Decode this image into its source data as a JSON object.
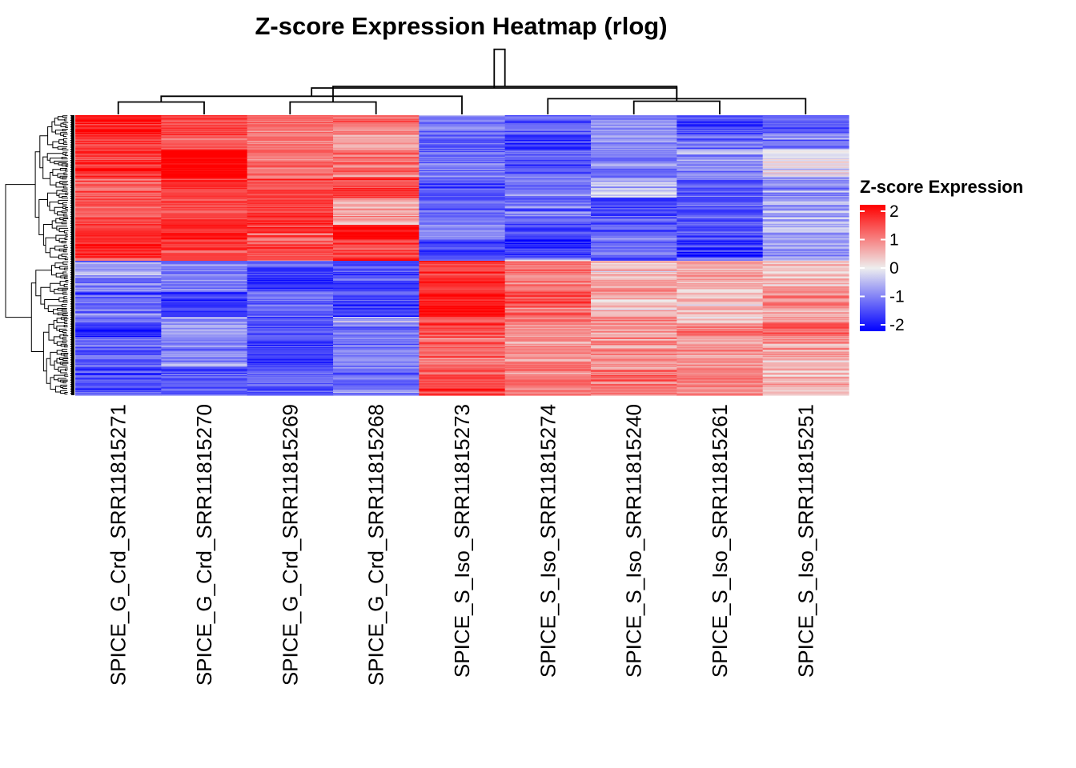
{
  "chart_data": {
    "type": "heatmap",
    "title": "Z-score Expression Heatmap (rlog)",
    "xlabel": "",
    "ylabel": "",
    "columns": [
      "SPICE_G_Crd_SRR11815271",
      "SPICE_G_Crd_SRR11815270",
      "SPICE_G_Crd_SRR11815269",
      "SPICE_G_Crd_SRR11815268",
      "SPICE_S_Iso_SRR11815273",
      "SPICE_S_Iso_SRR11815274",
      "SPICE_S_Iso_SRR11815240",
      "SPICE_S_Iso_SRR11815261",
      "SPICE_S_Iso_SRR11815251"
    ],
    "row_dendrogram": "clustered genes (approx. 250 rows, labels not shown)",
    "row_clusters": [
      {
        "name": "upper gene cluster",
        "row_fraction": 0.52,
        "mean_zscore_by_column": [
          1.4,
          1.6,
          1.2,
          1.1,
          -1.0,
          -1.0,
          -1.1,
          -1.1,
          -0.6
        ]
      },
      {
        "name": "lower gene cluster",
        "row_fraction": 0.48,
        "mean_zscore_by_column": [
          -1.0,
          -1.1,
          -1.2,
          -1.0,
          1.3,
          1.0,
          0.8,
          0.9,
          0.8
        ]
      }
    ],
    "column_dendrogram_merges": [
      {
        "left": 0,
        "right": 1,
        "height": 0.15
      },
      {
        "left": 2,
        "right": 3,
        "height": 0.15
      },
      {
        "left": 6,
        "right": 7,
        "height": 0.16
      },
      {
        "left": 5,
        "right": 8,
        "height": 0.19
      },
      {
        "left": 4,
        "right": 9,
        "height": 0.22
      },
      {
        "left": 10,
        "right": 11,
        "height": 0.34
      },
      {
        "left": 12,
        "right": 13,
        "height": 0.32
      },
      {
        "left": 14,
        "right": 15,
        "height": 0.79
      }
    ],
    "color_scale": {
      "min": -2,
      "max": 2,
      "colors": [
        "#0000FF",
        "#EEEEEE",
        "#FF0000"
      ]
    },
    "legend": {
      "title": "Z-score Expression",
      "ticks": [
        2,
        1,
        0,
        -1,
        -2
      ],
      "tick_labels": [
        "2",
        "1",
        "0",
        "-1",
        "-2"
      ],
      "position": "right"
    }
  }
}
